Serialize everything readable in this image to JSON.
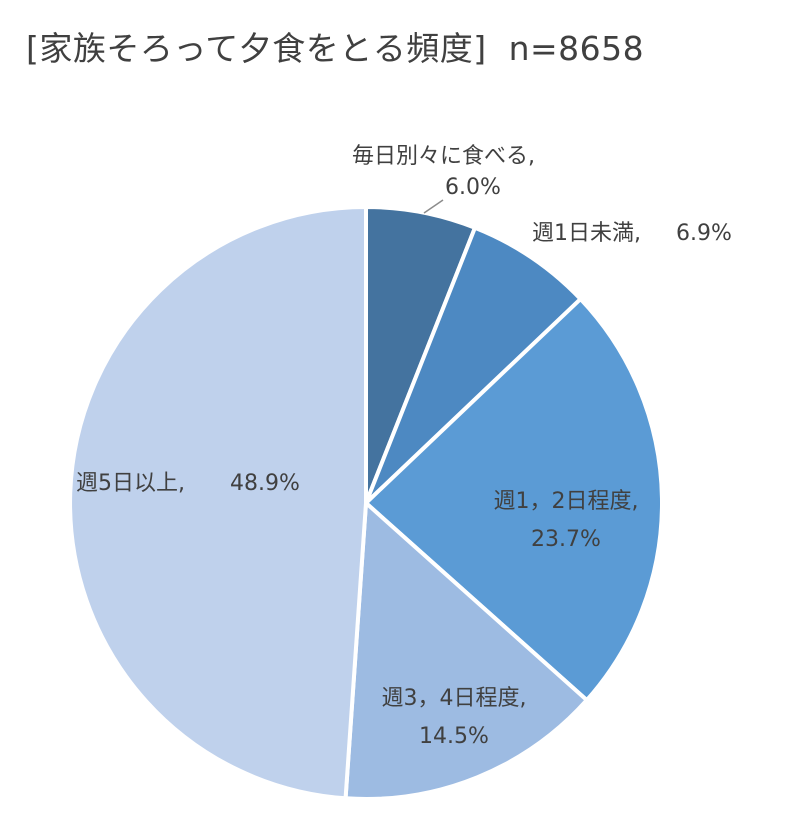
{
  "chart_data": {
    "type": "pie",
    "title": "[家族そろって夕食をとる頻度]",
    "n_label": "n=8658",
    "slices": [
      {
        "label": "毎日別々に食べる,",
        "value_label": "6.0%",
        "value": 6.0,
        "color": "#44739f"
      },
      {
        "label": "週1日未満,",
        "value_label": "6.9%",
        "value": 6.9,
        "color": "#4d89c2"
      },
      {
        "label": "週1，2日程度,",
        "value_label": "23.7%",
        "value": 23.7,
        "color": "#5b9bd5"
      },
      {
        "label": "週3，4日程度,",
        "value_label": "14.5%",
        "value": 14.5,
        "color": "#9dbbe2"
      },
      {
        "label": "週5日以上,",
        "value_label": "48.9%",
        "value": 48.9,
        "color": "#bfd1ec"
      }
    ],
    "legend": "none"
  }
}
